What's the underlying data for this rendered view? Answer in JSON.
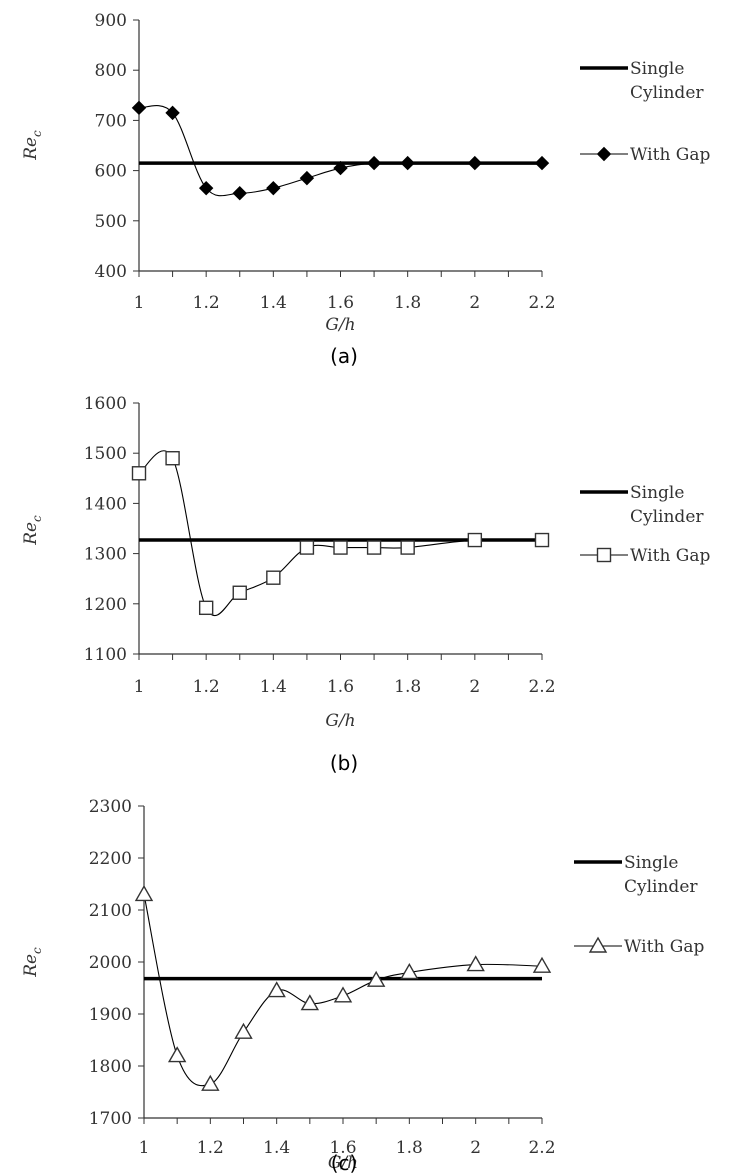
{
  "chart_data": [
    {
      "type": "line",
      "panel": "(a)",
      "xlabel": "G/h",
      "ylabel": "Re_c",
      "ylabel_base": "Re",
      "ylabel_sub": "c",
      "xlim": [
        1,
        2.2
      ],
      "ylim": [
        400,
        900
      ],
      "xticks": [
        "1",
        "1.2",
        "1.4",
        "1.6",
        "1.8",
        "2",
        "2.2"
      ],
      "yticks": [
        "400",
        "500",
        "600",
        "700",
        "800",
        "900"
      ],
      "grid": false,
      "legend_position": "right",
      "series": [
        {
          "name": "Single Cylinder",
          "name_lines": [
            "Single",
            "Cylinder"
          ],
          "marker": "none",
          "x": [
            1,
            2.2
          ],
          "y": [
            615,
            615
          ]
        },
        {
          "name": "With Gap",
          "name_lines": [
            "With Gap"
          ],
          "marker": "diamond",
          "x": [
            1,
            1.1,
            1.2,
            1.3,
            1.4,
            1.5,
            1.6,
            1.7,
            1.8,
            2,
            2.2
          ],
          "y": [
            725,
            715,
            565,
            555,
            565,
            585,
            605,
            615,
            615,
            615,
            615
          ]
        }
      ]
    },
    {
      "type": "line",
      "panel": "(b)",
      "xlabel": "G/h",
      "ylabel": "Re_c",
      "ylabel_base": "Re",
      "ylabel_sub": "c",
      "xlim": [
        1,
        2.2
      ],
      "ylim": [
        1100,
        1600
      ],
      "xticks": [
        "1",
        "1.2",
        "1.4",
        "1.6",
        "1.8",
        "2",
        "2.2"
      ],
      "yticks": [
        "1100",
        "1200",
        "1300",
        "1400",
        "1500",
        "1600"
      ],
      "grid": false,
      "legend_position": "right",
      "series": [
        {
          "name": "Single Cylinder",
          "name_lines": [
            "Single",
            "Cylinder"
          ],
          "marker": "none",
          "x": [
            1,
            2.2
          ],
          "y": [
            1327,
            1327
          ]
        },
        {
          "name": "With Gap",
          "name_lines": [
            "With Gap"
          ],
          "marker": "square",
          "x": [
            1,
            1.1,
            1.2,
            1.3,
            1.4,
            1.5,
            1.6,
            1.7,
            1.8,
            2,
            2.2
          ],
          "y": [
            1460,
            1490,
            1192,
            1222,
            1252,
            1312,
            1312,
            1312,
            1312,
            1327,
            1327
          ]
        }
      ]
    },
    {
      "type": "line",
      "panel": "(c)",
      "xlabel": "G/h",
      "ylabel": "Re_c",
      "ylabel_base": "Re",
      "ylabel_sub": "c",
      "xlim": [
        1,
        2.2
      ],
      "ylim": [
        1700,
        2300
      ],
      "xticks": [
        "1",
        "1.2",
        "1.4",
        "1.6",
        "1.8",
        "2",
        "2.2"
      ],
      "yticks": [
        "1700",
        "1800",
        "1900",
        "2000",
        "2100",
        "2200",
        "2300"
      ],
      "grid": false,
      "legend_position": "right",
      "series": [
        {
          "name": "Single Cylinder",
          "name_lines": [
            "Single",
            "Cylinder"
          ],
          "marker": "none",
          "x": [
            1,
            2.2
          ],
          "y": [
            1968,
            1968
          ]
        },
        {
          "name": "With Gap",
          "name_lines": [
            "With Gap"
          ],
          "marker": "triangle",
          "x": [
            1,
            1.1,
            1.2,
            1.3,
            1.4,
            1.5,
            1.6,
            1.7,
            1.8,
            2,
            2.2
          ],
          "y": [
            2130,
            1820,
            1765,
            1865,
            1945,
            1920,
            1935,
            1965,
            1980,
            1995,
            1992
          ]
        }
      ]
    }
  ]
}
